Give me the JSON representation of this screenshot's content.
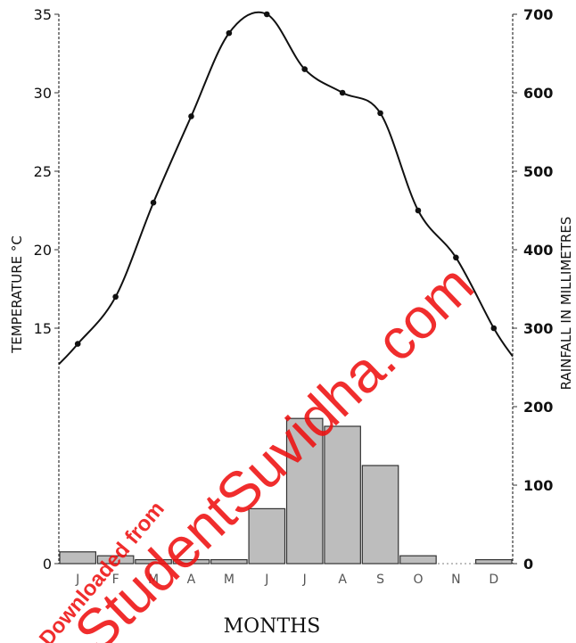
{
  "chart_data": {
    "type": "bar+line",
    "categories": [
      "J",
      "F",
      "M",
      "A",
      "M",
      "J",
      "J",
      "A",
      "S",
      "O",
      "N",
      "D"
    ],
    "category_labels_shown": [
      "J",
      "F",
      "M",
      "A",
      "M",
      "J",
      "J",
      "A",
      "S",
      "O",
      "N",
      "D"
    ],
    "series": [
      {
        "kind": "line",
        "axis": "left",
        "values": [
          14,
          17,
          23,
          28.5,
          33.8,
          35,
          31.5,
          30,
          28.7,
          22.5,
          19.5,
          15
        ]
      },
      {
        "kind": "bar",
        "axis": "right",
        "values": [
          15,
          10,
          5,
          5,
          5,
          70,
          185,
          175,
          125,
          10,
          0,
          5
        ]
      }
    ],
    "xlabel": "MONTHS",
    "ylabel_left": "TEMPERATURE °C",
    "ylabel_right": "RAINFALL IN MILLIMETRES",
    "y_left": {
      "min": 0,
      "max": 35,
      "ticks": [
        0,
        15,
        20,
        25,
        30,
        35
      ]
    },
    "y_right": {
      "min": 0,
      "max": 700,
      "ticks": [
        0,
        100,
        200,
        300,
        400,
        500,
        600,
        700
      ]
    },
    "colors": {
      "line": "#111111",
      "bar_fill": "#bdbdbd",
      "bar_stroke": "#333333",
      "watermark": "#ee1111"
    }
  },
  "watermark": {
    "lines": [
      "Downloaded from",
      "StudentSuvidha.com"
    ]
  }
}
